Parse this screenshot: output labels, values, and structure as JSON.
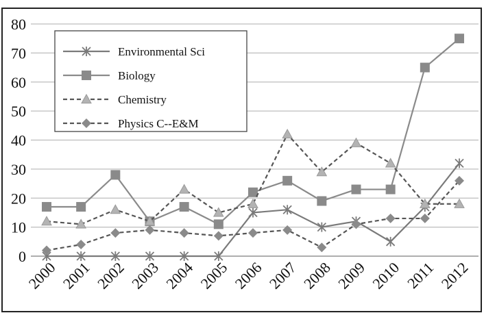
{
  "chart_data": {
    "type": "line",
    "categories": [
      "2000",
      "2001",
      "2002",
      "2003",
      "2004",
      "2005",
      "2006",
      "2007",
      "2008",
      "2009",
      "2010",
      "2011",
      "2012"
    ],
    "series": [
      {
        "name": "Environmental Sci",
        "color": "#7a7a7a",
        "marker": "star",
        "dash": "solid",
        "values": [
          0,
          0,
          0,
          0,
          0,
          0,
          15,
          16,
          10,
          12,
          5,
          17,
          32
        ]
      },
      {
        "name": "Biology",
        "color": "#8a8a8a",
        "marker": "square",
        "dash": "solid",
        "values": [
          17,
          17,
          28,
          12,
          17,
          11,
          22,
          26,
          19,
          23,
          23,
          65,
          75
        ]
      },
      {
        "name": "Chemistry",
        "color": "#555555",
        "marker": "triangle",
        "dash": "dashed",
        "values": [
          12,
          11,
          16,
          12,
          23,
          15,
          18,
          42,
          29,
          39,
          32,
          18,
          18
        ]
      },
      {
        "name": "Physics C--E&M",
        "color": "#555555",
        "marker": "diamond",
        "dash": "dashed",
        "values": [
          2,
          4,
          8,
          9,
          8,
          7,
          8,
          9,
          3,
          11,
          13,
          13,
          26
        ]
      }
    ],
    "ylim": [
      0,
      80
    ],
    "yticks": [
      0,
      10,
      20,
      30,
      40,
      50,
      60,
      70,
      80
    ],
    "grid": true,
    "legend": "upper left"
  }
}
